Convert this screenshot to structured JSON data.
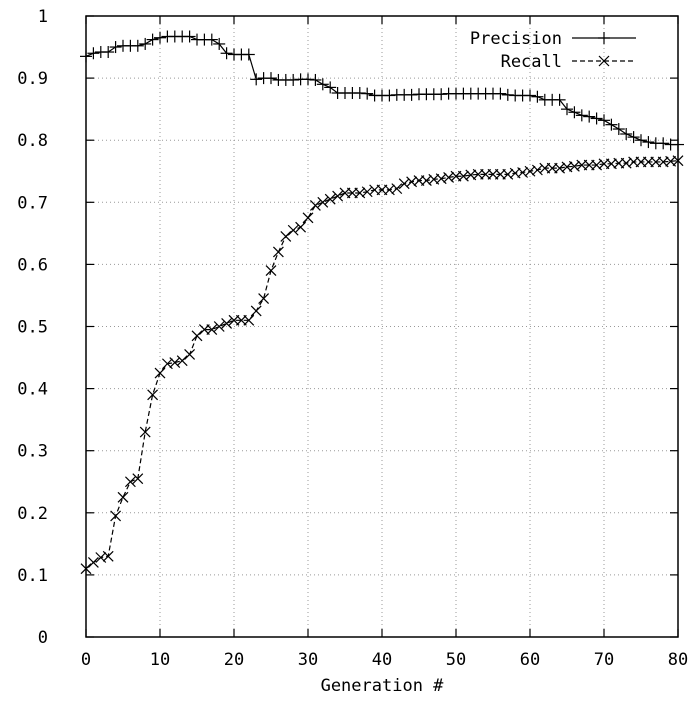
{
  "chart_data": {
    "type": "line",
    "xlabel": "Generation #",
    "ylabel": "",
    "xlim": [
      0,
      80
    ],
    "ylim": [
      0,
      1
    ],
    "xticks": [
      0,
      10,
      20,
      30,
      40,
      50,
      60,
      70,
      80
    ],
    "yticks": [
      0,
      0.1,
      0.2,
      0.3,
      0.4,
      0.5,
      0.6,
      0.7,
      0.8,
      0.9,
      1
    ],
    "grid": true,
    "legend": "top-right",
    "series": [
      {
        "name": "Precision",
        "style": "solid",
        "marker": "plus",
        "x": [
          0,
          1,
          2,
          3,
          4,
          5,
          6,
          7,
          8,
          9,
          10,
          11,
          12,
          13,
          14,
          15,
          16,
          17,
          18,
          19,
          20,
          21,
          22,
          23,
          24,
          25,
          26,
          27,
          28,
          29,
          30,
          31,
          32,
          33,
          34,
          35,
          36,
          37,
          38,
          39,
          40,
          41,
          42,
          43,
          44,
          45,
          46,
          47,
          48,
          49,
          50,
          51,
          52,
          53,
          54,
          55,
          56,
          57,
          58,
          59,
          60,
          61,
          62,
          63,
          64,
          65,
          66,
          67,
          68,
          69,
          70,
          71,
          72,
          73,
          74,
          75,
          76,
          77,
          78,
          79,
          80
        ],
        "values": [
          0.935,
          0.94,
          0.942,
          0.942,
          0.95,
          0.952,
          0.952,
          0.952,
          0.955,
          0.962,
          0.965,
          0.967,
          0.967,
          0.967,
          0.967,
          0.962,
          0.962,
          0.962,
          0.955,
          0.94,
          0.938,
          0.938,
          0.938,
          0.898,
          0.9,
          0.9,
          0.897,
          0.897,
          0.897,
          0.898,
          0.898,
          0.897,
          0.89,
          0.885,
          0.876,
          0.876,
          0.876,
          0.876,
          0.875,
          0.872,
          0.872,
          0.872,
          0.873,
          0.873,
          0.873,
          0.874,
          0.874,
          0.874,
          0.874,
          0.875,
          0.875,
          0.875,
          0.875,
          0.875,
          0.875,
          0.875,
          0.875,
          0.873,
          0.872,
          0.872,
          0.872,
          0.87,
          0.865,
          0.865,
          0.865,
          0.85,
          0.845,
          0.84,
          0.838,
          0.835,
          0.832,
          0.825,
          0.818,
          0.81,
          0.805,
          0.8,
          0.797,
          0.795,
          0.795,
          0.793,
          0.793
        ]
      },
      {
        "name": "Recall",
        "style": "dashed",
        "marker": "cross",
        "x": [
          0,
          1,
          2,
          3,
          4,
          5,
          6,
          7,
          8,
          9,
          10,
          11,
          12,
          13,
          14,
          15,
          16,
          17,
          18,
          19,
          20,
          21,
          22,
          23,
          24,
          25,
          26,
          27,
          28,
          29,
          30,
          31,
          32,
          33,
          34,
          35,
          36,
          37,
          38,
          39,
          40,
          41,
          42,
          43,
          44,
          45,
          46,
          47,
          48,
          49,
          50,
          51,
          52,
          53,
          54,
          55,
          56,
          57,
          58,
          59,
          60,
          61,
          62,
          63,
          64,
          65,
          66,
          67,
          68,
          69,
          70,
          71,
          72,
          73,
          74,
          75,
          76,
          77,
          78,
          79,
          80
        ],
        "values": [
          0.11,
          0.12,
          0.128,
          0.13,
          0.195,
          0.225,
          0.25,
          0.255,
          0.33,
          0.39,
          0.425,
          0.44,
          0.442,
          0.445,
          0.455,
          0.485,
          0.495,
          0.495,
          0.5,
          0.505,
          0.51,
          0.51,
          0.51,
          0.525,
          0.545,
          0.59,
          0.62,
          0.645,
          0.655,
          0.66,
          0.675,
          0.695,
          0.7,
          0.705,
          0.71,
          0.715,
          0.715,
          0.715,
          0.717,
          0.72,
          0.72,
          0.72,
          0.722,
          0.73,
          0.733,
          0.735,
          0.735,
          0.737,
          0.738,
          0.74,
          0.742,
          0.742,
          0.744,
          0.745,
          0.745,
          0.745,
          0.745,
          0.745,
          0.747,
          0.748,
          0.75,
          0.752,
          0.755,
          0.755,
          0.755,
          0.757,
          0.758,
          0.76,
          0.76,
          0.76,
          0.762,
          0.762,
          0.763,
          0.763,
          0.765,
          0.765,
          0.765,
          0.765,
          0.765,
          0.766,
          0.767
        ]
      }
    ]
  }
}
